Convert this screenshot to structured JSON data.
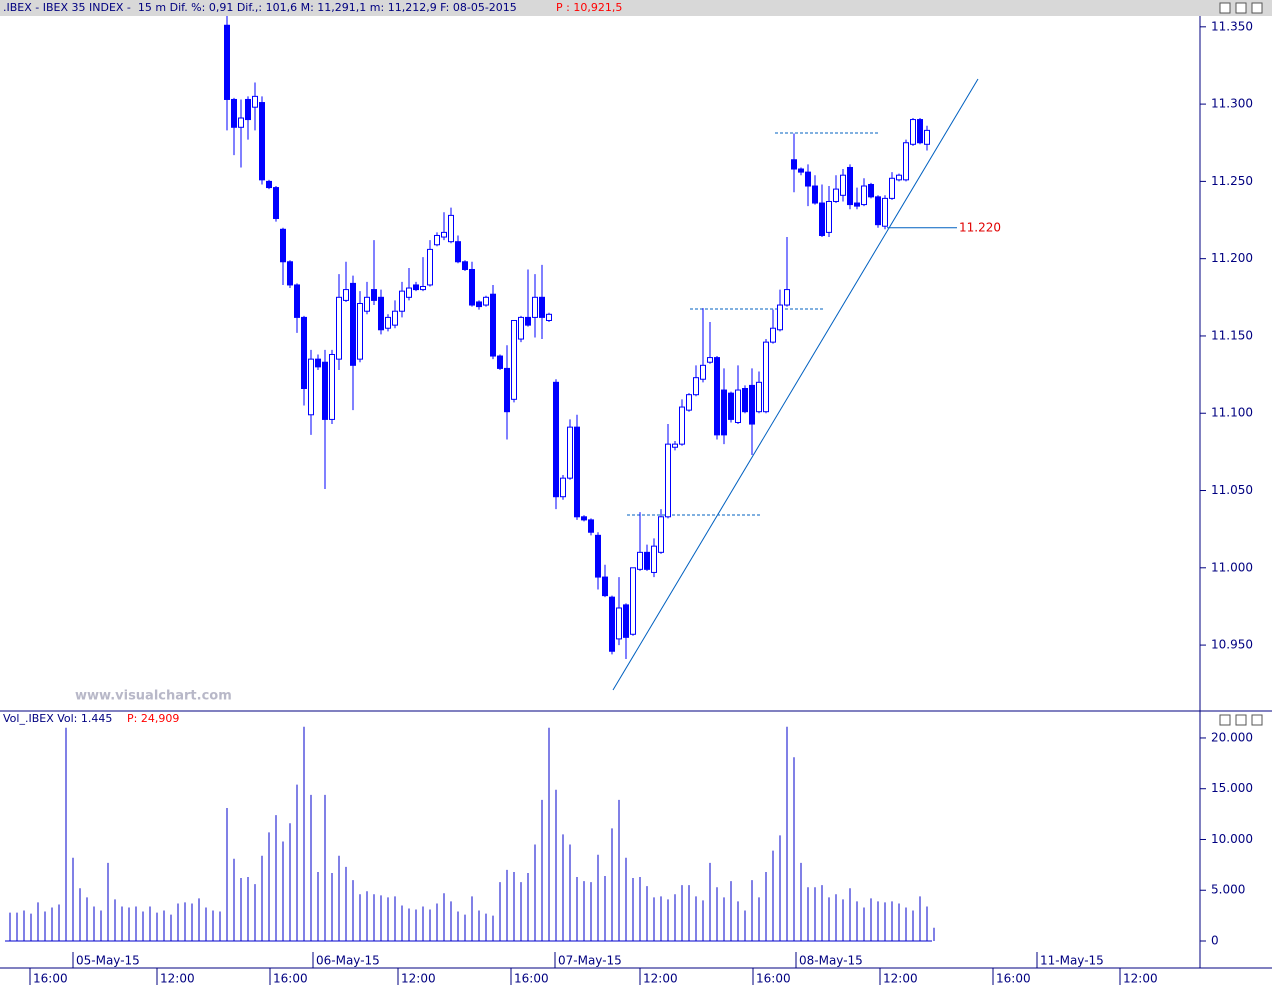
{
  "header": {
    "text": ".IBEX - IBEX 35 INDEX -  15 m Dif. %: 0,91 Dif.,: 101,6 M: 11,291,1 m: 11,212,9 F: 08-05-2015",
    "price": "P : 10,921,5"
  },
  "chart_data": [
    {
      "type": "candlestick",
      "color": "#0000ff",
      "watermark": "www.visualchart.com",
      "ylim": [
        10908,
        11357
      ],
      "yticks": [
        {
          "value": 10950,
          "label": "10.950"
        },
        {
          "value": 11000,
          "label": "11.000"
        },
        {
          "value": 11050,
          "label": "11.050"
        },
        {
          "value": 11100,
          "label": "11.100"
        },
        {
          "value": 11150,
          "label": "11.150"
        },
        {
          "value": 11200,
          "label": "11.200"
        },
        {
          "value": 11250,
          "label": "11.250"
        },
        {
          "value": 11300,
          "label": "11.300"
        },
        {
          "value": 11350,
          "label": "11.350"
        }
      ],
      "annotation": {
        "value": 11220,
        "label": "11.220"
      },
      "open": [
        11351,
        11303,
        11285,
        11303,
        11298,
        11301,
        11250,
        11246,
        11219,
        11198,
        11183,
        11162,
        11099,
        11135,
        11133,
        11096,
        11135,
        11173,
        11184,
        11135,
        11166,
        11180,
        11175,
        11155,
        11157,
        11166,
        11175,
        11183,
        11180,
        11183,
        11209,
        11214,
        11211,
        11211,
        11198,
        11193,
        11172,
        11170,
        11177,
        11137,
        11129,
        11109,
        11148,
        11162,
        11162,
        11175,
        11160,
        11120,
        11046,
        11058,
        11091,
        11033,
        11031,
        11021,
        10994,
        10981,
        10954,
        10976,
        10957,
        10999,
        11010,
        10997,
        11010,
        11033,
        11078,
        11080,
        11102,
        11112,
        11122,
        11133,
        11136,
        11115,
        11113,
        11094,
        11116,
        11118,
        11101,
        11101,
        11146,
        11154,
        11170,
        11264,
        11258,
        11256,
        11247,
        11236,
        11217,
        11237,
        11241,
        11259,
        11236,
        11235,
        11248,
        11240,
        11221,
        11239,
        11251,
        11251,
        11274,
        11290,
        11274
      ],
      "high": [
        11357,
        11304,
        11303,
        11305,
        11314,
        11305,
        11251,
        11247,
        11220,
        11199,
        11184,
        11163,
        11141,
        11138,
        11141,
        11141,
        11190,
        11198,
        11189,
        11179,
        11185,
        11212,
        11180,
        11164,
        11173,
        11185,
        11194,
        11185,
        11201,
        11212,
        11217,
        11230,
        11233,
        11215,
        11199,
        11198,
        11173,
        11176,
        11183,
        11138,
        11144,
        11160,
        11163,
        11193,
        11190,
        11196,
        11165,
        11122,
        11060,
        11096,
        11099,
        11034,
        11032,
        11023,
        11002,
        10982,
        10994,
        10977,
        11000,
        11036,
        11015,
        11019,
        11038,
        11093,
        11082,
        11109,
        11113,
        11131,
        11168,
        11159,
        11137,
        11129,
        11114,
        11131,
        11118,
        11129,
        11127,
        11148,
        11167,
        11180,
        11214,
        11281,
        11259,
        11261,
        11254,
        11248,
        11247,
        11254,
        11258,
        11261,
        11246,
        11252,
        11249,
        11241,
        11241,
        11256,
        11255,
        11277,
        11291,
        11291,
        11286
      ],
      "low": [
        11283,
        11267,
        11259,
        11277,
        11283,
        11248,
        11245,
        11224,
        11183,
        11181,
        11152,
        11105,
        11086,
        11128,
        11051,
        11093,
        11128,
        11172,
        11102,
        11133,
        11164,
        11170,
        11151,
        11153,
        11155,
        11162,
        11173,
        11179,
        11179,
        11182,
        11208,
        11212,
        11210,
        11197,
        11192,
        11169,
        11167,
        11169,
        11135,
        11128,
        11083,
        11107,
        11146,
        11156,
        11149,
        11148,
        11159,
        11038,
        11044,
        11057,
        11031,
        11030,
        11021,
        10986,
        10981,
        10944,
        10950,
        10941,
        10956,
        10998,
        10998,
        10994,
        11009,
        11032,
        11076,
        11079,
        11101,
        11111,
        11120,
        11132,
        11083,
        11080,
        11094,
        11093,
        11100,
        11073,
        11100,
        11100,
        11145,
        11153,
        11169,
        11243,
        11254,
        11234,
        11235,
        11214,
        11214,
        11236,
        11237,
        11232,
        11232,
        11234,
        11239,
        11220,
        11219,
        11238,
        11250,
        11250,
        11273,
        11274,
        11270
      ],
      "close": [
        11303,
        11285,
        11291,
        11290,
        11305,
        11251,
        11246,
        11226,
        11198,
        11183,
        11162,
        11116,
        11135,
        11130,
        11096,
        11138,
        11175,
        11180,
        11131,
        11171,
        11175,
        11173,
        11154,
        11162,
        11166,
        11179,
        11181,
        11180,
        11182,
        11206,
        11215,
        11217,
        11228,
        11198,
        11193,
        11170,
        11169,
        11175,
        11137,
        11129,
        11101,
        11160,
        11162,
        11157,
        11175,
        11162,
        11164,
        11046,
        11058,
        11091,
        11033,
        11031,
        11023,
        10994,
        10982,
        10946,
        10974,
        10955,
        11000,
        11010,
        10999,
        11014,
        11033,
        11080,
        11080,
        11104,
        11112,
        11123,
        11131,
        11136,
        11086,
        11086,
        11096,
        11115,
        11101,
        11093,
        11120,
        11146,
        11155,
        11170,
        11180,
        11258,
        11256,
        11247,
        11236,
        11215,
        11237,
        11245,
        11254,
        11235,
        11234,
        11247,
        11240,
        11222,
        11239,
        11252,
        11254,
        11275,
        11290,
        11275,
        11283
      ]
    },
    {
      "type": "bar",
      "title": "Vol_.IBEX Vol: 1.445",
      "subtitle": "P: 24,909",
      "color": "#0000cc",
      "ylim": [
        0,
        21080
      ],
      "yticks": [
        0,
        {
          "value": 5000,
          "label": "5.000"
        },
        {
          "value": 10000,
          "label": "10.000"
        },
        {
          "value": 15000,
          "label": "15.000"
        },
        {
          "value": 20000,
          "label": "20.000"
        }
      ],
      "values": [
        2800,
        2800,
        3000,
        2700,
        3800,
        2900,
        3300,
        3600,
        21000,
        8200,
        5200,
        4300,
        3400,
        3000,
        7700,
        4100,
        3400,
        3300,
        3400,
        2900,
        3400,
        2800,
        3000,
        2600,
        3700,
        3800,
        3700,
        4200,
        3300,
        3000,
        2900,
        13100,
        8100,
        6200,
        6300,
        5600,
        8400,
        10700,
        12400,
        9800,
        11600,
        15400,
        21100,
        14400,
        6800,
        14400,
        6700,
        8400,
        7300,
        6000,
        4600,
        4900,
        4600,
        4500,
        4300,
        4400,
        3500,
        3200,
        3100,
        3400,
        3100,
        3700,
        4700,
        3900,
        2900,
        2600,
        4400,
        3000,
        2700,
        2500,
        5800,
        7000,
        6800,
        5800,
        6700,
        9500,
        13900,
        21000,
        14900,
        10500,
        9500,
        6300,
        5900,
        5800,
        8500,
        6400,
        11100,
        13900,
        8200,
        6200,
        6300,
        5400,
        4300,
        4400,
        4100,
        4600,
        5500,
        5500,
        4400,
        4000,
        7700,
        5300,
        4300,
        5900,
        3900,
        3000,
        6000,
        4300,
        6800,
        8900,
        10400,
        21100,
        18100,
        7700,
        5300,
        5300,
        5500,
        4300,
        4600,
        4100,
        5200,
        3900,
        3300,
        4200,
        3900,
        3800,
        3900,
        3700,
        3300,
        3000,
        4400,
        3400,
        1300
      ],
      "x_axis_labels": [
        "16:00",
        "05-May-15",
        "12:00",
        "16:00",
        "06-May-15",
        "12:00",
        "16:00",
        "07-May-15",
        "12:00",
        "16:00",
        "08-May-15",
        "12:00",
        "16:00",
        "11-May-15",
        "12:00"
      ]
    }
  ]
}
